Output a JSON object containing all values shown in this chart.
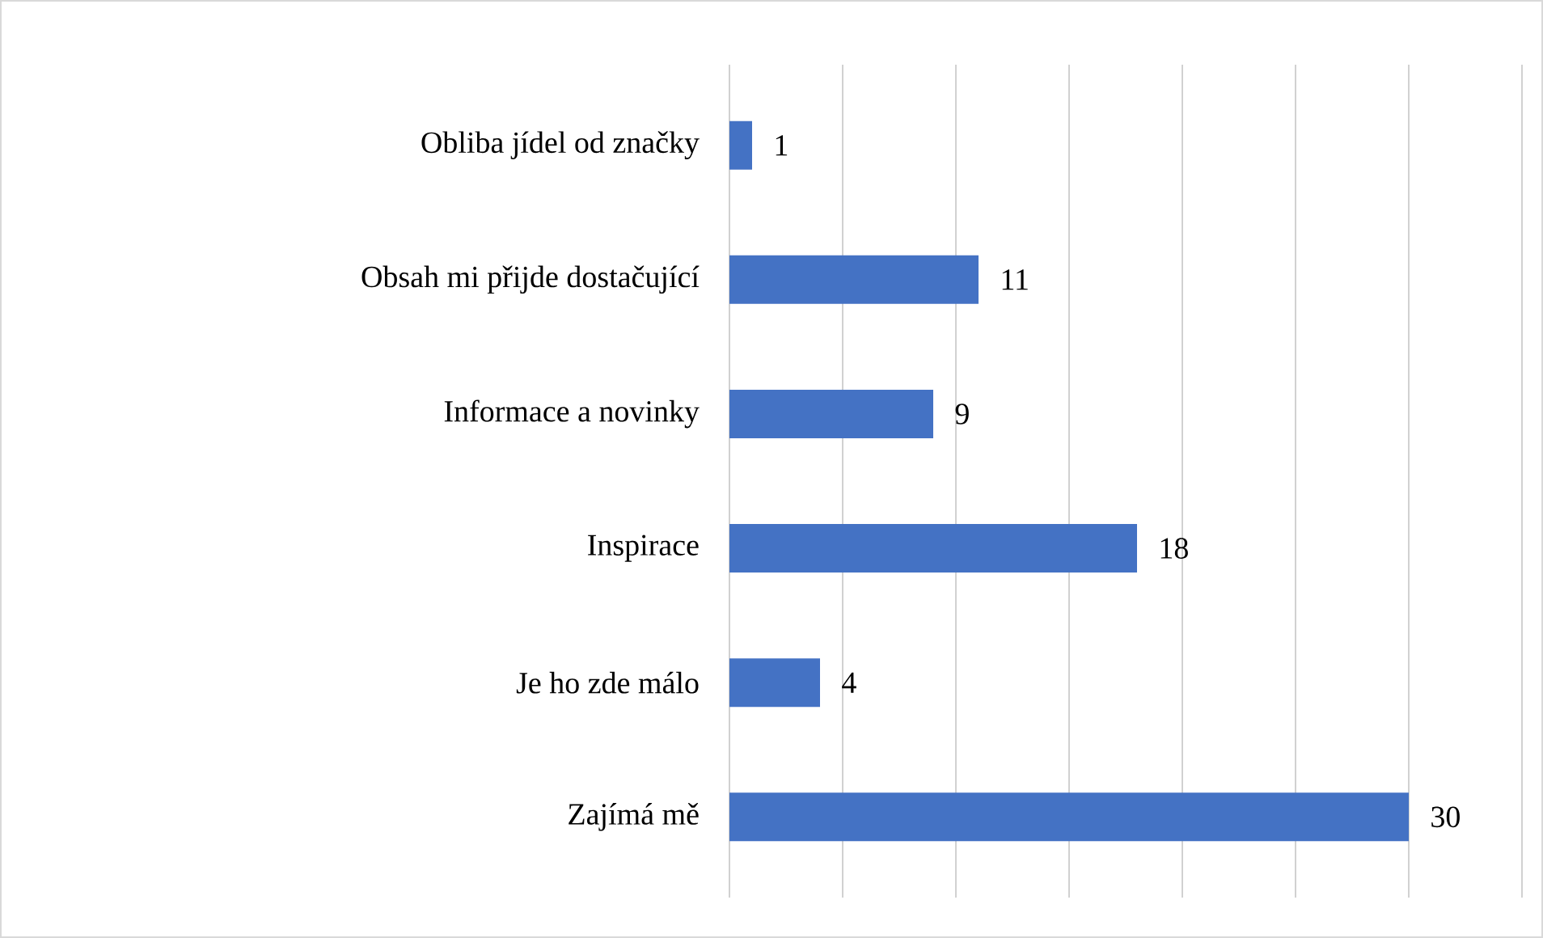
{
  "chart_data": {
    "type": "bar",
    "orientation": "horizontal",
    "categories": [
      "Obliba jídel od značky",
      "Obsah mi přijde dostačující",
      "Informace a novinky",
      "Inspirace",
      "Je ho zde málo",
      "Zajímá mě"
    ],
    "values": [
      1,
      11,
      9,
      18,
      4,
      30
    ],
    "color": "#4472c4",
    "xlim": [
      0,
      35
    ],
    "xticks": [
      0,
      5,
      10,
      15,
      20,
      25,
      30,
      35
    ],
    "tick_labels": "y",
    "grid": "x",
    "data_labels": true
  }
}
